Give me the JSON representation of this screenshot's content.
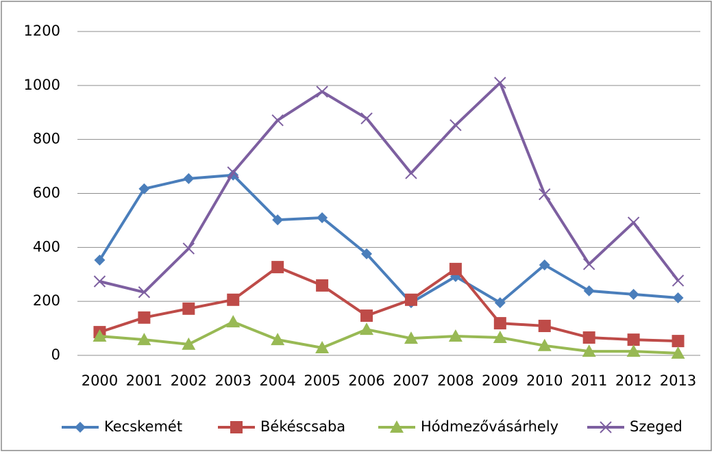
{
  "chart_data": {
    "type": "line",
    "categories": [
      "2000",
      "2001",
      "2002",
      "2003",
      "2004",
      "2005",
      "2006",
      "2007",
      "2008",
      "2009",
      "2010",
      "2011",
      "2012",
      "2013"
    ],
    "series": [
      {
        "name": "Kecskemét",
        "color": "#4a7ebb",
        "marker": "diamond",
        "values": [
          353,
          617,
          655,
          668,
          502,
          510,
          376,
          195,
          292,
          195,
          335,
          239,
          226,
          213
        ]
      },
      {
        "name": "Békéscsaba",
        "color": "#be4b48",
        "marker": "square",
        "values": [
          86,
          140,
          173,
          206,
          327,
          259,
          147,
          206,
          320,
          119,
          109,
          66,
          58,
          53
        ]
      },
      {
        "name": "Hódmezővásárhely",
        "color": "#98b954",
        "marker": "triangle",
        "values": [
          71,
          58,
          41,
          124,
          58,
          28,
          96,
          63,
          71,
          66,
          36,
          15,
          15,
          8
        ]
      },
      {
        "name": "Szeged",
        "color": "#7d5fa0",
        "marker": "x",
        "values": [
          274,
          234,
          396,
          678,
          871,
          977,
          878,
          675,
          853,
          1010,
          597,
          338,
          492,
          277
        ]
      }
    ],
    "ylim": [
      0,
      1200
    ],
    "yticks": [
      0,
      200,
      400,
      600,
      800,
      1000,
      1200
    ],
    "grid": true,
    "legend": "bottom"
  }
}
